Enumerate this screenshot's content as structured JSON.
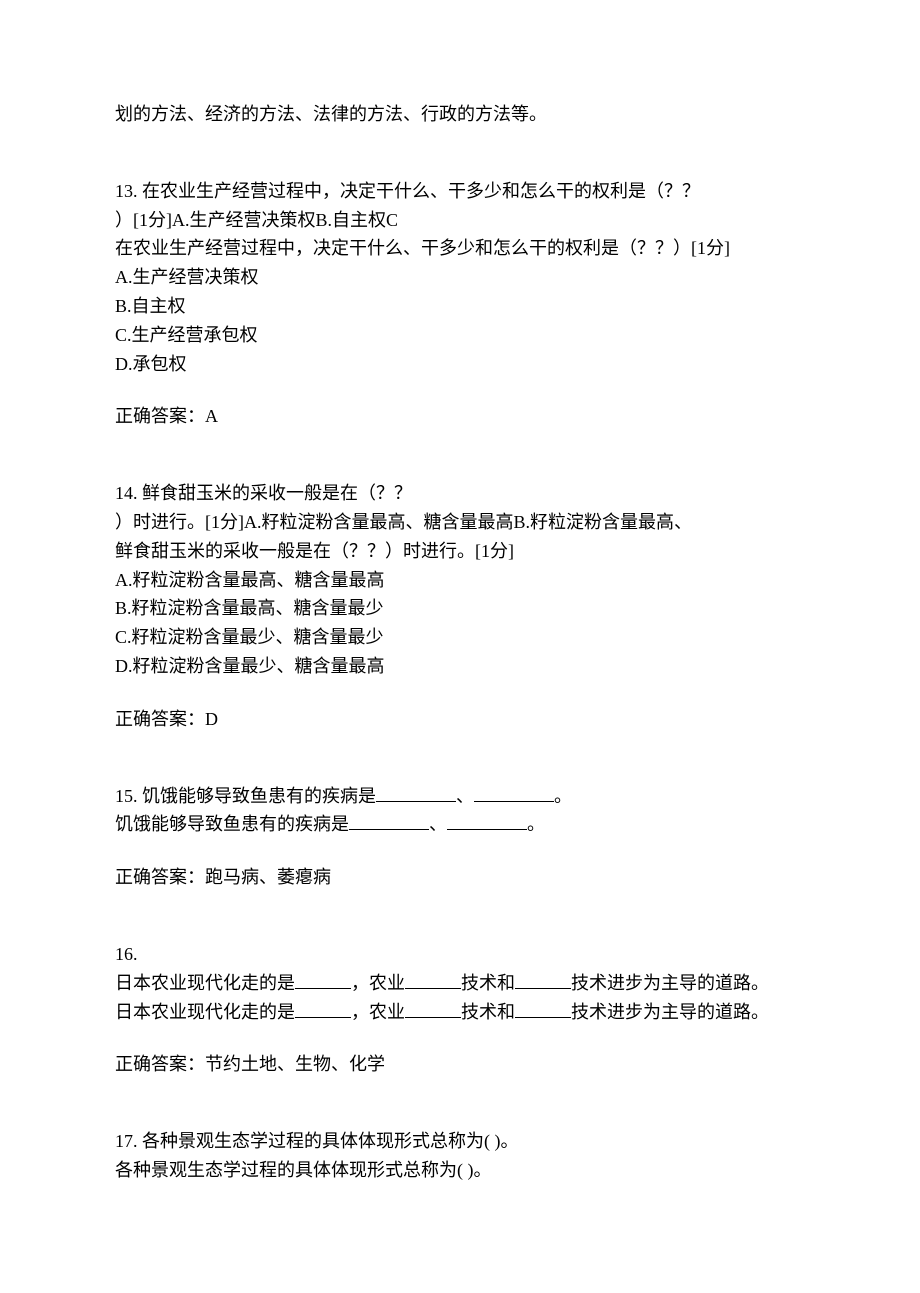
{
  "intro_fragment": "划的方法、经济的方法、法律的方法、行政的方法等。",
  "q13": {
    "stem_line1": "13. 在农业生产经营过程中，决定干什么、干多少和怎么干的权利是（？？",
    "stem_line2": "）[1分]A.生产经营决策权B.自主权C",
    "restate": "在农业生产经营过程中，决定干什么、干多少和怎么干的权利是（？？）[1分]",
    "opt_a": "A.生产经营决策权",
    "opt_b": "B.自主权",
    "opt_c": "C.生产经营承包权",
    "opt_d": "D.承包权",
    "answer": "正确答案：A"
  },
  "q14": {
    "stem_line1": "14. 鲜食甜玉米的采收一般是在（？？",
    "stem_line2": "）时进行。[1分]A.籽粒淀粉含量最高、糖含量最高B.籽粒淀粉含量最高、",
    "restate": "鲜食甜玉米的采收一般是在（？？）时进行。[1分]",
    "opt_a": "A.籽粒淀粉含量最高、糖含量最高",
    "opt_b": "B.籽粒淀粉含量最高、糖含量最少",
    "opt_c": "C.籽粒淀粉含量最少、糖含量最少",
    "opt_d": "D.籽粒淀粉含量最少、糖含量最高",
    "answer": "正确答案：D"
  },
  "q15": {
    "stem_prefix": "15. 饥饿能够导致鱼患有的疾病是",
    "sep": "、",
    "period": "。",
    "restate_prefix": "饥饿能够导致鱼患有的疾病是",
    "answer": "正确答案：跑马病、萎瘪病"
  },
  "q16": {
    "number": "16.",
    "p1": "日本农业现代化走的是",
    "p2": "，农业",
    "p3": "技术和",
    "p4": "技术进步为主导的道路。",
    "answer": "正确答案：节约土地、生物、化学"
  },
  "q17": {
    "stem": "17. 各种景观生态学过程的具体体现形式总称为(  )。",
    "restate": "各种景观生态学过程的具体体现形式总称为(  )。"
  }
}
